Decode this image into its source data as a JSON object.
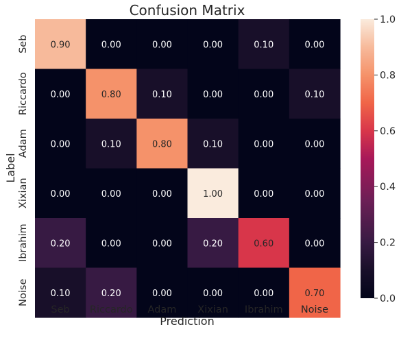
{
  "chart_data": {
    "type": "heatmap",
    "title": "Confusion Matrix",
    "xlabel": "Prediction",
    "ylabel": "Label",
    "x_categories": [
      "Seb",
      "Riccardo",
      "Adam",
      "Xixian",
      "Ibrahim",
      "Noise"
    ],
    "y_categories": [
      "Seb",
      "Riccardo",
      "Adam",
      "Xixian",
      "Ibrahim",
      "Noise"
    ],
    "values": [
      [
        0.9,
        0.0,
        0.0,
        0.0,
        0.1,
        0.0
      ],
      [
        0.0,
        0.8,
        0.1,
        0.0,
        0.0,
        0.1
      ],
      [
        0.0,
        0.1,
        0.8,
        0.1,
        0.0,
        0.0
      ],
      [
        0.0,
        0.0,
        0.0,
        1.0,
        0.0,
        0.0
      ],
      [
        0.2,
        0.0,
        0.0,
        0.2,
        0.6,
        0.0
      ],
      [
        0.1,
        0.2,
        0.0,
        0.0,
        0.0,
        0.7
      ]
    ],
    "colorbar": {
      "range": [
        0.0,
        1.0
      ],
      "ticks": [
        "0.0",
        "0.2",
        "0.4",
        "0.6",
        "0.8",
        "1.0"
      ],
      "colormap": "rocket"
    },
    "grid": false
  }
}
